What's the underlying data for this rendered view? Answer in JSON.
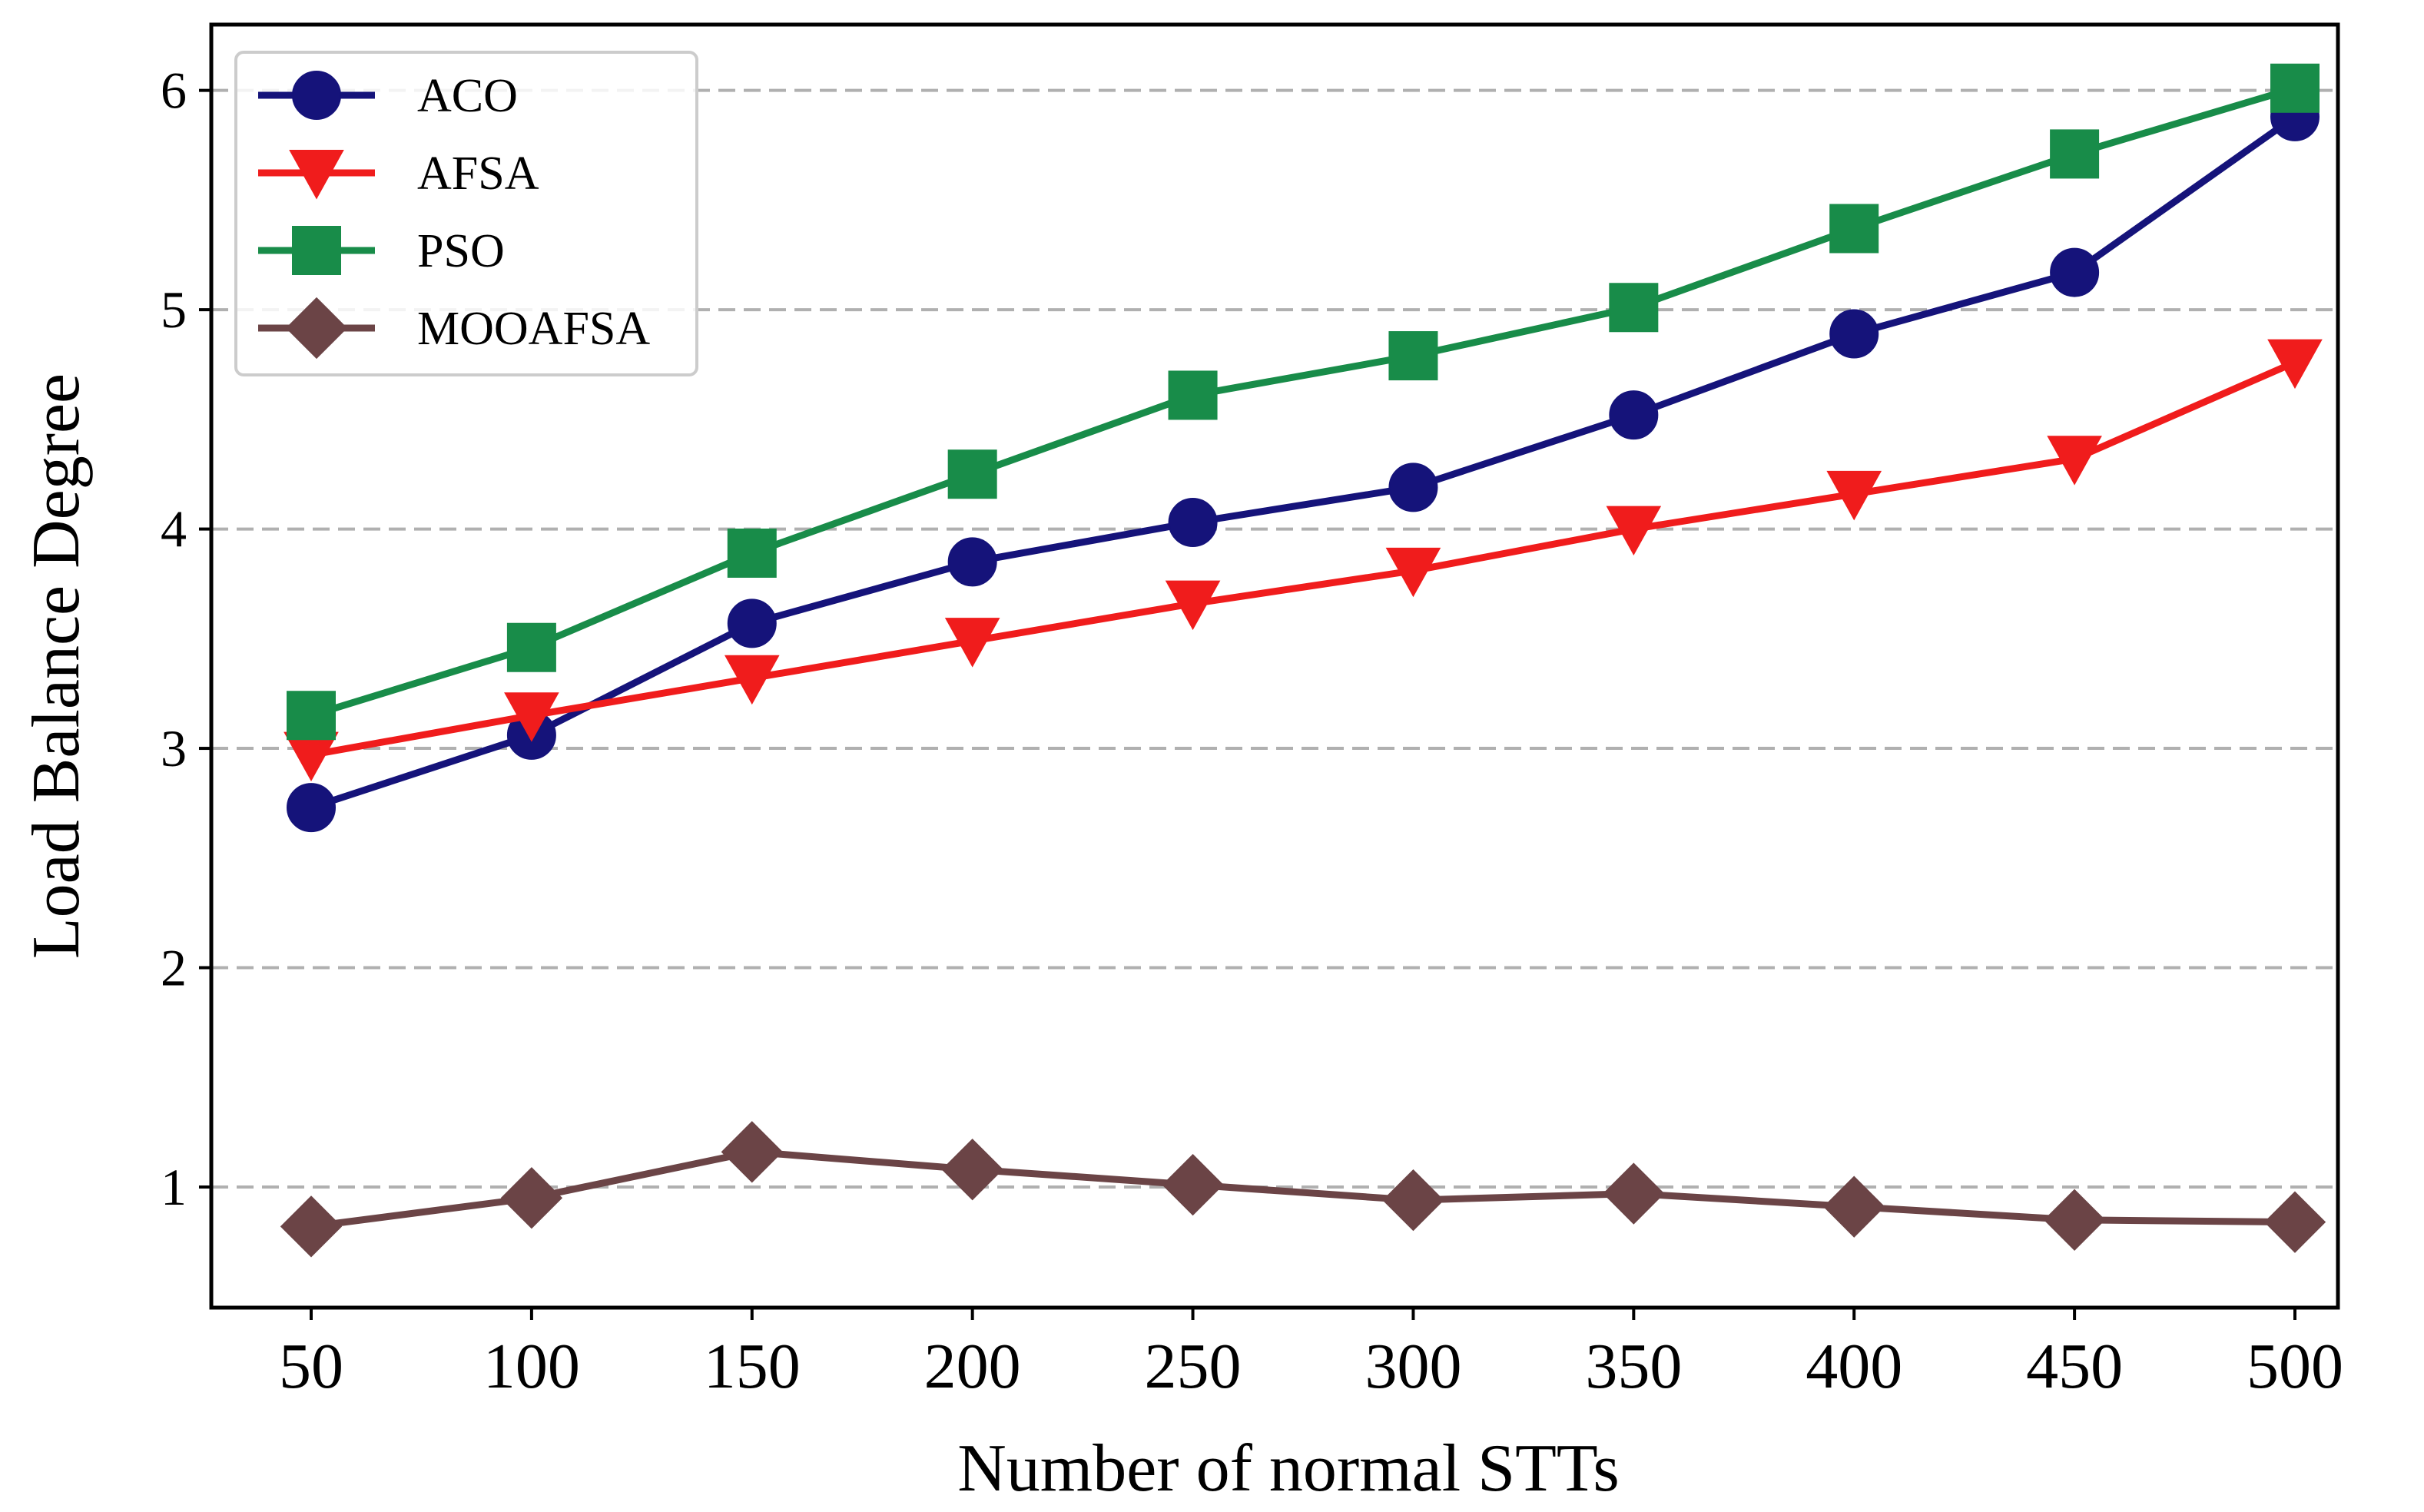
{
  "chart_data": {
    "type": "line",
    "title": "",
    "xlabel": "Number of normal STTs",
    "ylabel": "Load Balance Degree",
    "x": [
      50,
      100,
      150,
      200,
      250,
      300,
      350,
      400,
      450,
      500
    ],
    "x_tick_labels": [
      "50",
      "100",
      "150",
      "200",
      "250",
      "300",
      "350",
      "400",
      "450",
      "500"
    ],
    "yticks": [
      1,
      2,
      3,
      4,
      5,
      6
    ],
    "y_tick_labels": [
      "1",
      "2",
      "3",
      "4",
      "5",
      "6"
    ],
    "ylim": [
      0.45,
      6.3
    ],
    "grid": "horizontal dashed",
    "legend_position": "top-left",
    "series": [
      {
        "name": "ACO",
        "color": "#15137a",
        "marker": "circle",
        "values": [
          2.73,
          3.06,
          3.57,
          3.85,
          4.03,
          4.19,
          4.52,
          4.89,
          5.17,
          5.88
        ]
      },
      {
        "name": "AFSA",
        "color": "#f01c1c",
        "marker": "triangle-down",
        "values": [
          2.97,
          3.15,
          3.32,
          3.49,
          3.66,
          3.81,
          4.0,
          4.16,
          4.32,
          4.76
        ]
      },
      {
        "name": "PSO",
        "color": "#188c49",
        "marker": "square",
        "values": [
          3.15,
          3.46,
          3.89,
          4.25,
          4.61,
          4.79,
          5.01,
          5.37,
          5.71,
          6.01
        ]
      },
      {
        "name": "MOOAFSA",
        "color": "#6b4446",
        "marker": "diamond",
        "values": [
          0.82,
          0.95,
          1.16,
          1.08,
          1.01,
          0.94,
          0.97,
          0.91,
          0.85,
          0.84
        ]
      }
    ]
  }
}
